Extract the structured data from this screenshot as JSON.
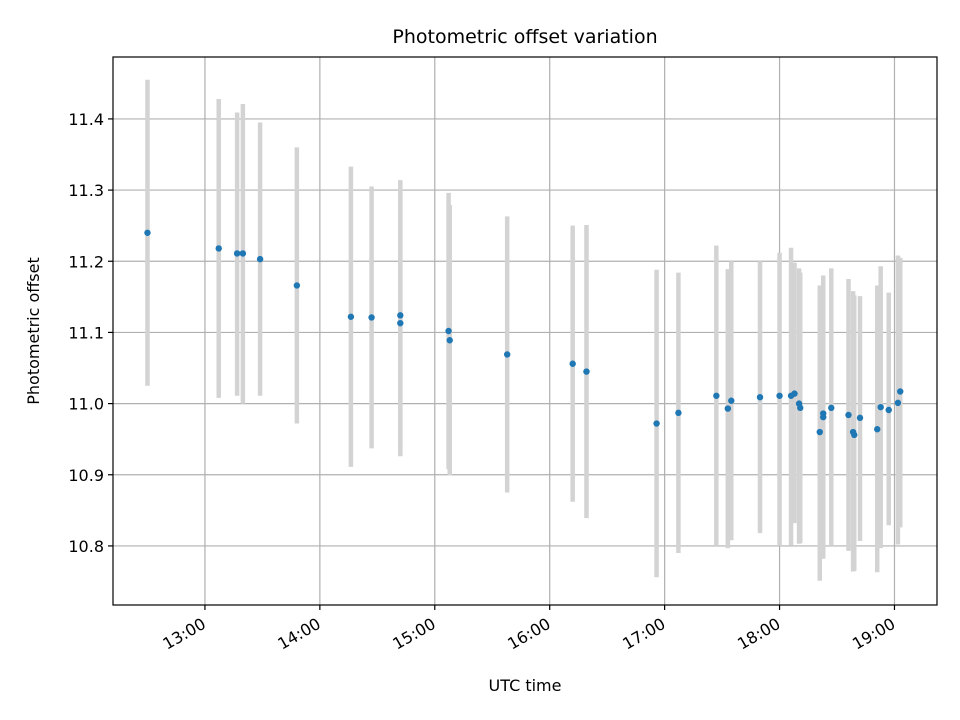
{
  "chart_data": {
    "type": "scatter",
    "title": "Photometric offset variation",
    "xlabel": "UTC time",
    "ylabel": "Photometric offset",
    "x_unit": "hours UTC",
    "xlim": [
      12.2,
      19.37
    ],
    "ylim": [
      10.717,
      11.487
    ],
    "grid": true,
    "xticks": [
      {
        "value": 13,
        "label": "13:00"
      },
      {
        "value": 14,
        "label": "14:00"
      },
      {
        "value": 15,
        "label": "15:00"
      },
      {
        "value": 16,
        "label": "16:00"
      },
      {
        "value": 17,
        "label": "17:00"
      },
      {
        "value": 18,
        "label": "18:00"
      },
      {
        "value": 19,
        "label": "19:00"
      }
    ],
    "yticks": [
      {
        "value": 10.8,
        "label": "10.8"
      },
      {
        "value": 10.9,
        "label": "10.9"
      },
      {
        "value": 11.0,
        "label": "11.0"
      },
      {
        "value": 11.1,
        "label": "11.1"
      },
      {
        "value": 11.2,
        "label": "11.2"
      },
      {
        "value": 11.3,
        "label": "11.3"
      },
      {
        "value": 11.4,
        "label": "11.4"
      }
    ],
    "colors": {
      "points": "#1f77b4",
      "errorbars": "#d3d3d3",
      "grid": "#b0b0b0"
    },
    "points": [
      {
        "x": 12.5,
        "y": 11.24,
        "err_low": 11.025,
        "err_high": 11.455
      },
      {
        "x": 13.12,
        "y": 11.218,
        "err_low": 11.008,
        "err_high": 11.428
      },
      {
        "x": 13.28,
        "y": 11.211,
        "err_low": 11.011,
        "err_high": 11.409
      },
      {
        "x": 13.33,
        "y": 11.211,
        "err_low": 11.0,
        "err_high": 11.421
      },
      {
        "x": 13.48,
        "y": 11.203,
        "err_low": 11.011,
        "err_high": 11.395
      },
      {
        "x": 13.8,
        "y": 11.166,
        "err_low": 10.972,
        "err_high": 11.36
      },
      {
        "x": 14.27,
        "y": 11.122,
        "err_low": 10.911,
        "err_high": 11.333
      },
      {
        "x": 14.45,
        "y": 11.121,
        "err_low": 10.937,
        "err_high": 11.305
      },
      {
        "x": 14.7,
        "y": 11.124,
        "err_low": 10.934,
        "err_high": 11.314
      },
      {
        "x": 14.7,
        "y": 11.113,
        "err_low": 10.926,
        "err_high": 11.3
      },
      {
        "x": 15.12,
        "y": 11.102,
        "err_low": 10.908,
        "err_high": 11.296
      },
      {
        "x": 15.13,
        "y": 11.089,
        "err_low": 10.899,
        "err_high": 11.279
      },
      {
        "x": 15.63,
        "y": 11.069,
        "err_low": 10.875,
        "err_high": 11.263
      },
      {
        "x": 16.2,
        "y": 11.056,
        "err_low": 10.862,
        "err_high": 11.25
      },
      {
        "x": 16.32,
        "y": 11.045,
        "err_low": 10.839,
        "err_high": 11.251
      },
      {
        "x": 16.93,
        "y": 10.972,
        "err_low": 10.756,
        "err_high": 11.188
      },
      {
        "x": 17.12,
        "y": 10.987,
        "err_low": 10.79,
        "err_high": 11.184
      },
      {
        "x": 17.45,
        "y": 11.011,
        "err_low": 10.8,
        "err_high": 11.222
      },
      {
        "x": 17.55,
        "y": 10.993,
        "err_low": 10.797,
        "err_high": 11.189
      },
      {
        "x": 17.58,
        "y": 11.004,
        "err_low": 10.808,
        "err_high": 11.2
      },
      {
        "x": 17.83,
        "y": 11.009,
        "err_low": 10.818,
        "err_high": 11.2
      },
      {
        "x": 18.0,
        "y": 11.011,
        "err_low": 10.8,
        "err_high": 11.212
      },
      {
        "x": 18.1,
        "y": 11.011,
        "err_low": 10.801,
        "err_high": 11.219
      },
      {
        "x": 18.13,
        "y": 11.014,
        "err_low": 10.832,
        "err_high": 11.198
      },
      {
        "x": 18.17,
        "y": 11.0,
        "err_low": 10.803,
        "err_high": 11.19
      },
      {
        "x": 18.18,
        "y": 10.994,
        "err_low": 10.804,
        "err_high": 11.184
      },
      {
        "x": 18.35,
        "y": 10.96,
        "err_low": 10.751,
        "err_high": 11.166
      },
      {
        "x": 18.38,
        "y": 10.986,
        "err_low": 10.79,
        "err_high": 11.18
      },
      {
        "x": 18.38,
        "y": 10.981,
        "err_low": 10.782,
        "err_high": 11.172
      },
      {
        "x": 18.45,
        "y": 10.994,
        "err_low": 10.8,
        "err_high": 11.19
      },
      {
        "x": 18.6,
        "y": 10.984,
        "err_low": 10.793,
        "err_high": 11.175
      },
      {
        "x": 18.64,
        "y": 10.96,
        "err_low": 10.764,
        "err_high": 11.158
      },
      {
        "x": 18.65,
        "y": 10.956,
        "err_low": 10.765,
        "err_high": 11.152
      },
      {
        "x": 18.7,
        "y": 10.98,
        "err_low": 10.807,
        "err_high": 11.151
      },
      {
        "x": 18.85,
        "y": 10.964,
        "err_low": 10.763,
        "err_high": 11.166
      },
      {
        "x": 18.88,
        "y": 10.995,
        "err_low": 10.797,
        "err_high": 11.193
      },
      {
        "x": 18.95,
        "y": 10.991,
        "err_low": 10.829,
        "err_high": 11.156
      },
      {
        "x": 19.03,
        "y": 11.001,
        "err_low": 10.802,
        "err_high": 11.208
      },
      {
        "x": 19.05,
        "y": 11.017,
        "err_low": 10.826,
        "err_high": 11.205
      }
    ]
  }
}
